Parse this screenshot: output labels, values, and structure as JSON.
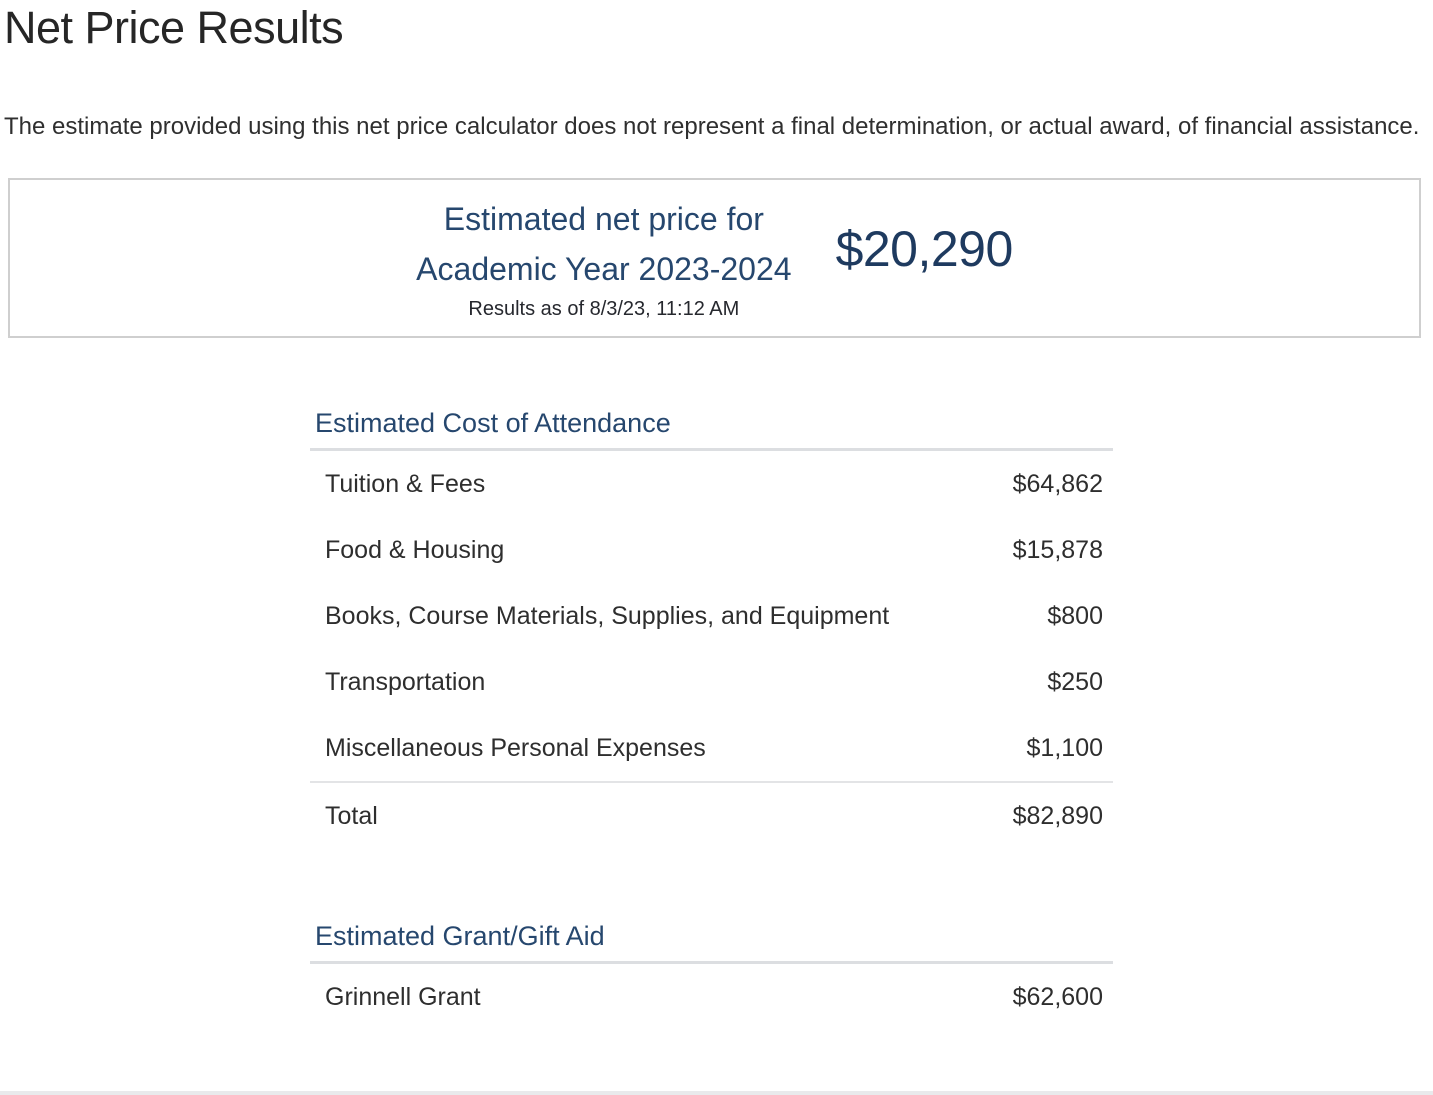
{
  "page": {
    "title": "Net Price Results",
    "disclaimer": "The estimate provided using this net price calculator does not represent a final determination, or actual award, of financial assistance."
  },
  "summary_box": {
    "heading_line1": "Estimated net price for",
    "heading_line2": "Academic Year 2023-2024",
    "timestamp": "Results as of 8/3/23, 11:12 AM",
    "amount": "$20,290"
  },
  "cost_of_attendance": {
    "heading": "Estimated Cost of Attendance",
    "rows": [
      {
        "label": "Tuition & Fees",
        "amount": "$64,862"
      },
      {
        "label": "Food & Housing",
        "amount": "$15,878"
      },
      {
        "label": "Books, Course Materials, Supplies, and Equipment",
        "amount": "$800"
      },
      {
        "label": "Transportation",
        "amount": "$250"
      },
      {
        "label": "Miscellaneous Personal Expenses",
        "amount": "$1,100"
      }
    ],
    "total": {
      "label": "Total",
      "amount": "$82,890"
    }
  },
  "grant_aid": {
    "heading": "Estimated Grant/Gift Aid",
    "rows": [
      {
        "label": "Grinnell Grant",
        "amount": "$62,600"
      }
    ]
  },
  "colors": {
    "heading_navy": "#26476E",
    "price_navy": "#1E3A5F",
    "body_text": "#2E2E2E",
    "rule_gray": "#DCDEE1",
    "box_border": "#CFCFCF"
  }
}
